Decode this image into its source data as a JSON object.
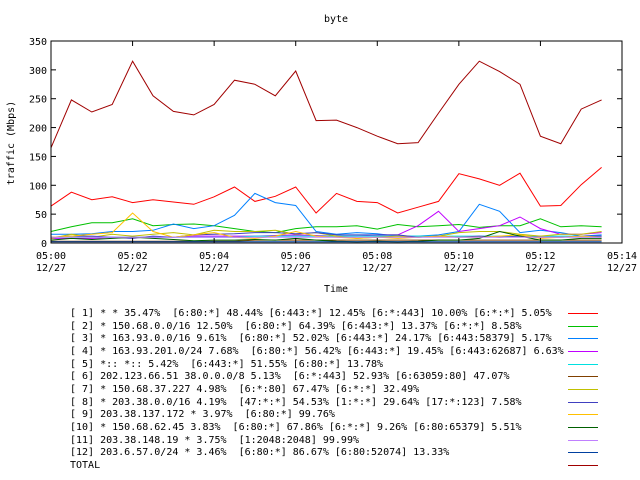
{
  "chart_data": {
    "type": "line",
    "title": "byte",
    "xlabel": "Time",
    "ylabel": "traffic (Mbps)",
    "ylim": [
      0,
      350
    ],
    "yticks": [
      0,
      50,
      100,
      150,
      200,
      250,
      300,
      350
    ],
    "xlim": [
      0,
      14
    ],
    "xtick_labels": [
      {
        "time": "05:00",
        "date": "12/27"
      },
      {
        "time": "05:02",
        "date": "12/27"
      },
      {
        "time": "05:04",
        "date": "12/27"
      },
      {
        "time": "05:06",
        "date": "12/27"
      },
      {
        "time": "05:08",
        "date": "12/27"
      },
      {
        "time": "05:10",
        "date": "12/27"
      },
      {
        "time": "05:12",
        "date": "12/27"
      },
      {
        "time": "05:14",
        "date": "12/27"
      }
    ],
    "x_minutes": [
      0,
      0.5,
      1,
      1.5,
      2,
      2.5,
      3,
      3.5,
      4,
      4.5,
      5,
      5.5,
      6,
      6.5,
      7,
      7.5,
      8,
      8.5,
      9,
      9.5,
      10,
      10.5,
      11,
      11.5,
      12,
      12.5,
      13,
      13.5
    ],
    "series": [
      {
        "label": "[ 1] * * 35.47%  [6:80:*] 48.44% [6:443:*] 12.45% [6:*:443] 10.00% [6:*:*] 5.05%",
        "color": "#ff0000",
        "values": [
          64,
          88,
          75,
          80,
          70,
          75,
          71,
          67,
          80,
          97,
          72,
          81,
          97,
          52,
          86,
          72,
          70,
          52,
          62,
          72,
          120,
          111,
          100,
          121,
          64,
          65,
          101,
          131
        ]
      },
      {
        "label": "[ 2] * 150.68.0.0/16 12.50%  [6:80:*] 64.39% [6:443:*] 13.37% [6:*:*] 8.58%",
        "color": "#00c000",
        "values": [
          20,
          28,
          35,
          35,
          42,
          30,
          32,
          33,
          30,
          25,
          20,
          18,
          25,
          28,
          28,
          30,
          24,
          32,
          28,
          30,
          32,
          27,
          30,
          30,
          42,
          28,
          30,
          28
        ]
      },
      {
        "label": "[ 3] * 163.93.0.0/16 9.61%  [6:80:*] 52.02% [6:443:*] 24.17% [6:443:58379] 5.17%",
        "color": "#0080ff",
        "values": [
          15,
          15,
          16,
          20,
          20,
          22,
          33,
          25,
          30,
          48,
          86,
          70,
          65,
          20,
          15,
          18,
          16,
          12,
          12,
          14,
          20,
          67,
          55,
          18,
          22,
          18,
          12,
          14
        ]
      },
      {
        "label": "[ 4] * 163.93.201.0/24 7.68%  [6:80:*] 56.42% [6:443:*] 19.45% [6:443:62687] 6.63%",
        "color": "#c000ff",
        "values": [
          8,
          8,
          8,
          10,
          10,
          10,
          10,
          12,
          12,
          12,
          12,
          13,
          14,
          13,
          12,
          12,
          14,
          14,
          30,
          55,
          20,
          25,
          30,
          45,
          25,
          15,
          15,
          18
        ]
      },
      {
        "label": "[ 5] *:: *:: 5.42%  [6:443:*] 51.55% [6:80:*] 13.78%",
        "color": "#00e0e0",
        "values": [
          10,
          10,
          10,
          10,
          10,
          10,
          10,
          10,
          10,
          10,
          12,
          12,
          12,
          12,
          12,
          12,
          12,
          12,
          12,
          12,
          12,
          12,
          12,
          12,
          12,
          12,
          12,
          12
        ]
      },
      {
        "label": "[ 6] 202.123.66.51 38.0.0.0/8 5.13%  [6:*:443] 52.93% [6:63059:80] 47.07%",
        "color": "#804000",
        "values": [
          3,
          3,
          3,
          3,
          3,
          3,
          3,
          3,
          3,
          3,
          5,
          5,
          5,
          5,
          5,
          5,
          5,
          5,
          5,
          5,
          5,
          5,
          5,
          5,
          5,
          5,
          5,
          5
        ]
      },
      {
        "label": "[ 7] * 150.68.37.227 4.98%  [6:*:80] 67.47% [6:*:*] 32.49%",
        "color": "#c0c000",
        "values": [
          8,
          15,
          10,
          15,
          12,
          15,
          18,
          14,
          22,
          20,
          20,
          22,
          15,
          18,
          12,
          8,
          10,
          12,
          10,
          12,
          18,
          20,
          20,
          15,
          12,
          15,
          15,
          20
        ]
      },
      {
        "label": "[ 8] * 203.38.0.0/16 4.19%  [47:*:*] 54.53% [1:*:*] 29.64% [17:*:123] 7.58%",
        "color": "#4040c0",
        "values": [
          10,
          12,
          12,
          10,
          8,
          12,
          10,
          14,
          15,
          16,
          18,
          18,
          16,
          18,
          14,
          14,
          14,
          14,
          10,
          12,
          10,
          12,
          10,
          12,
          10,
          10,
          12,
          12
        ]
      },
      {
        "label": "[ 9] 203.38.137.172 * 3.97%  [6:80:*] 99.76%",
        "color": "#ffc000",
        "values": [
          10,
          12,
          15,
          18,
          52,
          20,
          10,
          14,
          18,
          10,
          8,
          12,
          20,
          12,
          10,
          8,
          10,
          8,
          10,
          12,
          10,
          10,
          12,
          14,
          8,
          10,
          12,
          10
        ]
      },
      {
        "label": "[10] * 150.68.62.45 3.83%  [6:80:*] 67.86% [6:*:*] 9.26% [6:80:65379] 5.51%",
        "color": "#006000",
        "values": [
          5,
          8,
          6,
          8,
          10,
          8,
          6,
          4,
          5,
          5,
          6,
          5,
          8,
          5,
          3,
          2,
          3,
          2,
          3,
          5,
          5,
          8,
          20,
          12,
          5,
          5,
          8,
          8
        ]
      },
      {
        "label": "[11] 203.38.148.19 * 3.75%  [1:2048:2048] 99.99%",
        "color": "#c080ff",
        "values": [
          10,
          10,
          10,
          10,
          10,
          10,
          10,
          10,
          10,
          10,
          10,
          10,
          10,
          10,
          10,
          10,
          10,
          10,
          10,
          10,
          10,
          10,
          10,
          10,
          10,
          10,
          10,
          10
        ]
      },
      {
        "label": "[12] 203.6.57.0/24 * 3.46%  [6:80:*] 86.67% [6:80:52074] 13.33%",
        "color": "#0040a0",
        "values": [
          2,
          2,
          2,
          2,
          2,
          2,
          2,
          2,
          2,
          2,
          2,
          2,
          2,
          2,
          2,
          2,
          2,
          2,
          2,
          2,
          2,
          2,
          2,
          2,
          2,
          2,
          2,
          2
        ]
      },
      {
        "label": "TOTAL",
        "color": "#a00000",
        "values": [
          165,
          248,
          227,
          240,
          315,
          255,
          228,
          222,
          240,
          282,
          275,
          255,
          298,
          212,
          213,
          200,
          185,
          172,
          174,
          225,
          275,
          315,
          297,
          275,
          185,
          172,
          232,
          248
        ]
      }
    ]
  }
}
